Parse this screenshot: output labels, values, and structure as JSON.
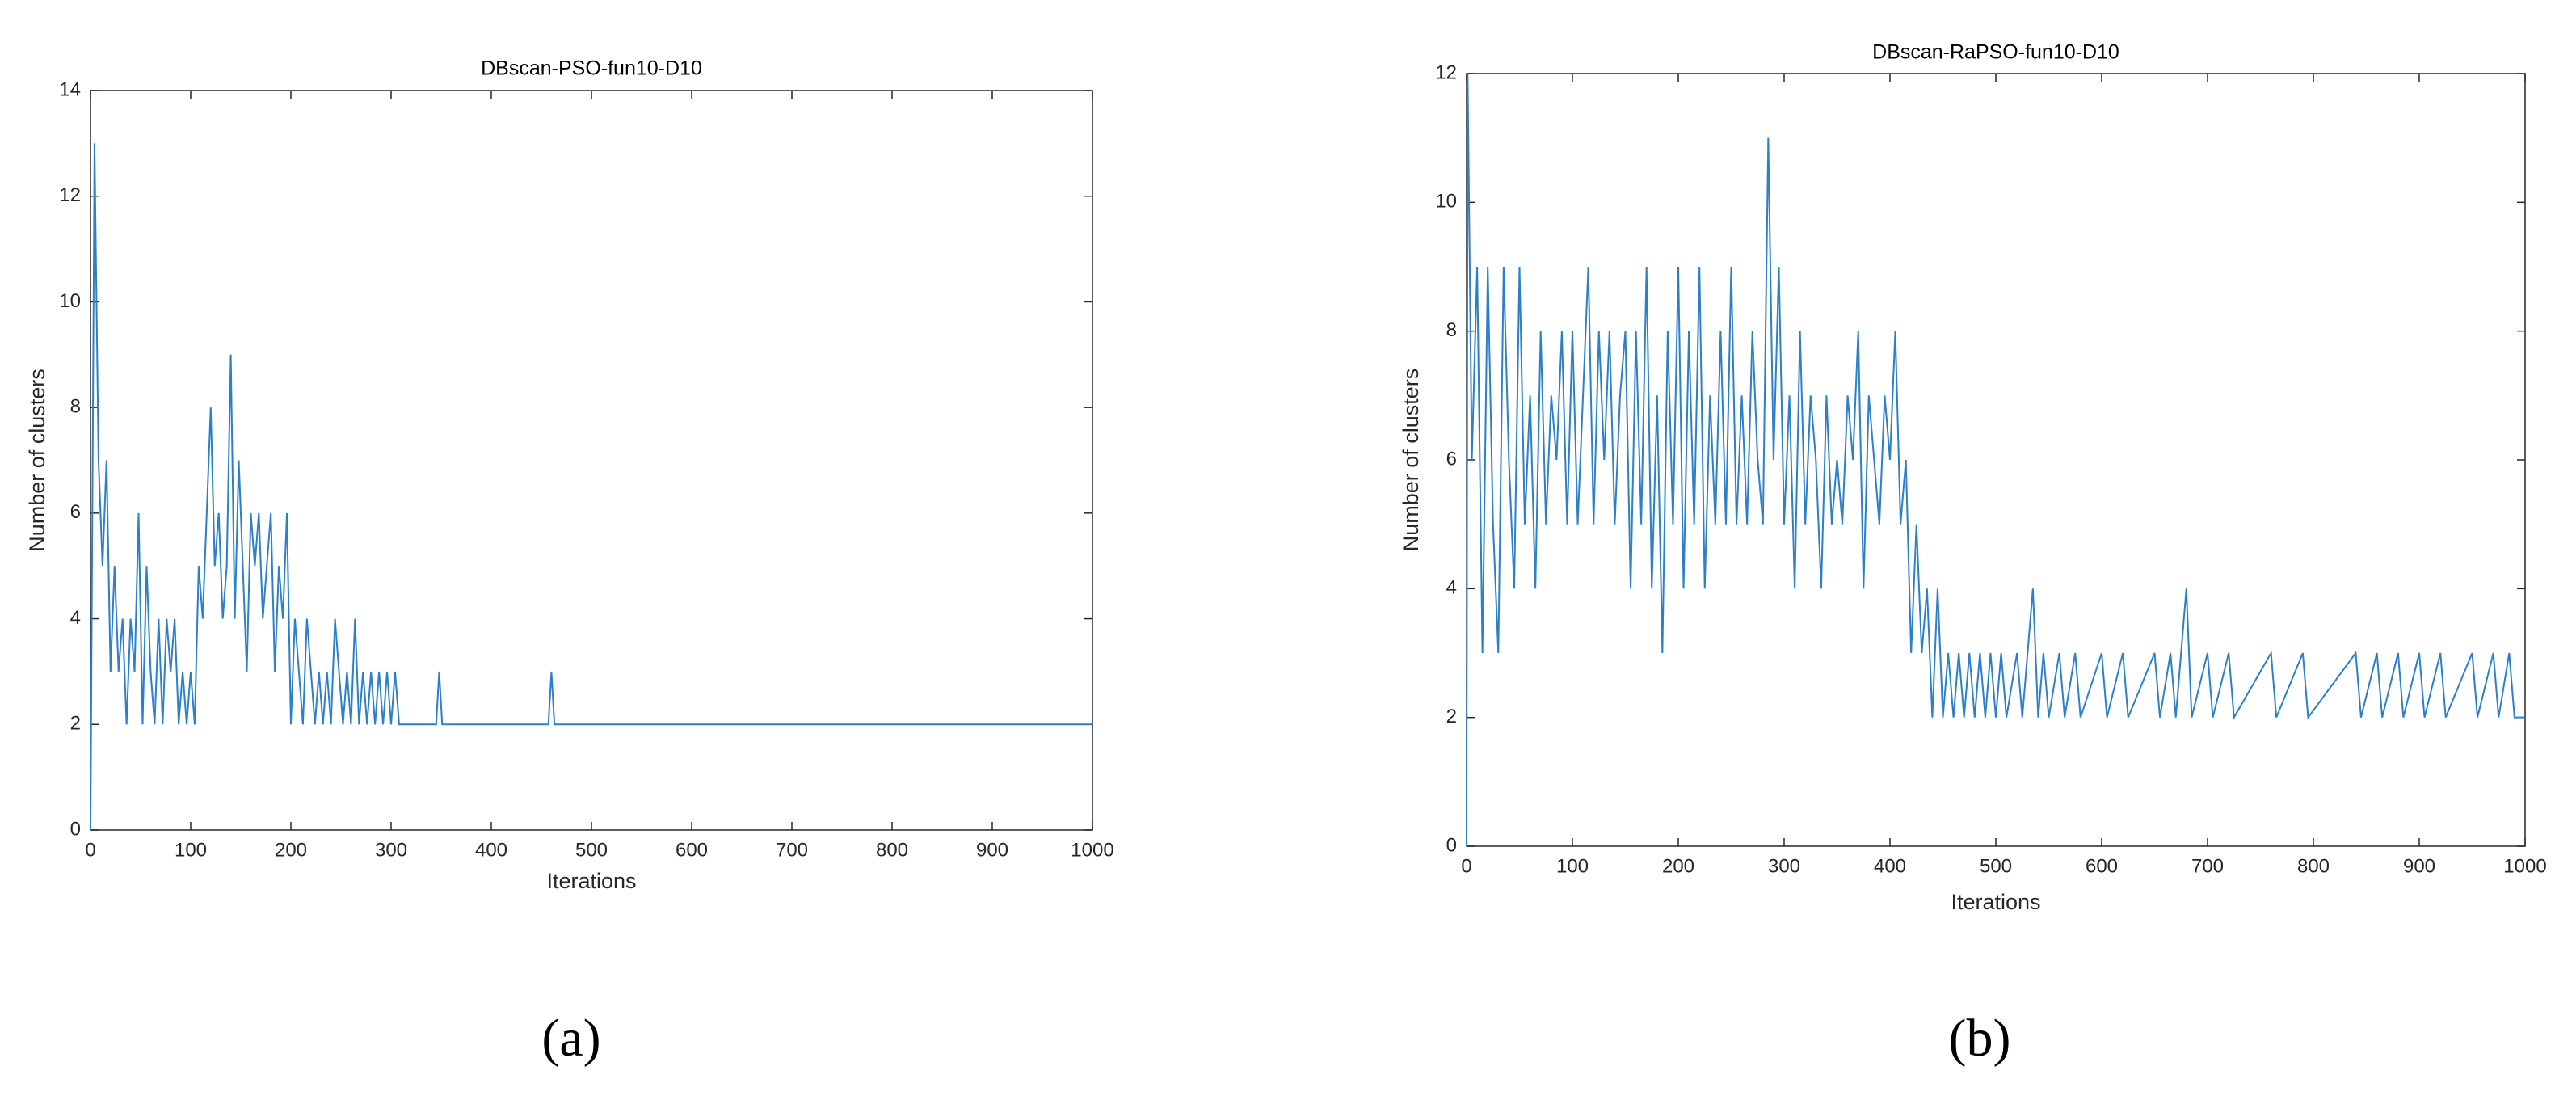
{
  "chart_data": [
    {
      "type": "line",
      "title": "DBscan-PSO-fun10-D10",
      "xlabel": "Iterations",
      "ylabel": "Number of clusters",
      "panel_label": "(a)",
      "color": "#2c7fc9",
      "grid": false,
      "x": [
        0,
        4,
        8,
        12,
        16,
        20,
        24,
        28,
        32,
        36,
        40,
        44,
        48,
        52,
        56,
        60,
        64,
        68,
        72,
        76,
        80,
        84,
        88,
        92,
        96,
        100,
        104,
        108,
        112,
        116,
        120,
        124,
        128,
        132,
        136,
        140,
        144,
        148,
        152,
        156,
        160,
        164,
        168,
        172,
        176,
        180,
        184,
        188,
        192,
        196,
        200,
        204,
        208,
        212,
        216,
        220,
        224,
        228,
        232,
        236,
        240,
        244,
        248,
        252,
        256,
        260,
        264,
        268,
        272,
        276,
        280,
        284,
        288,
        292,
        296,
        300,
        304,
        308,
        312,
        316,
        320,
        345,
        348,
        351,
        457,
        460,
        463,
        1000
      ],
      "values": [
        0,
        13,
        7,
        5,
        7,
        3,
        5,
        3,
        4,
        2,
        4,
        3,
        6,
        2,
        5,
        3,
        2,
        4,
        2,
        4,
        3,
        4,
        2,
        3,
        2,
        3,
        2,
        5,
        4,
        6,
        8,
        5,
        6,
        4,
        5,
        9,
        4,
        7,
        5,
        3,
        6,
        5,
        6,
        4,
        5,
        6,
        3,
        5,
        4,
        6,
        2,
        4,
        3,
        2,
        4,
        3,
        2,
        3,
        2,
        3,
        2,
        4,
        3,
        2,
        3,
        2,
        4,
        2,
        3,
        2,
        3,
        2,
        3,
        2,
        3,
        2,
        3,
        2,
        2,
        2,
        2,
        2,
        3,
        2,
        2,
        3,
        2,
        2
      ],
      "xlim": [
        0,
        1000
      ],
      "xticks": [
        0,
        100,
        200,
        300,
        400,
        500,
        600,
        700,
        800,
        900,
        1000
      ],
      "ylim": [
        0,
        14
      ],
      "yticks": [
        0,
        2,
        4,
        6,
        8,
        10,
        12,
        14
      ]
    },
    {
      "type": "line",
      "title": "DBscan-RaPSO-fun10-D10",
      "xlabel": "Iterations",
      "ylabel": "Number of clusters",
      "panel_label": "(b)",
      "color": "#2c7fc9",
      "grid": false,
      "x": [
        0,
        1,
        5,
        10,
        15,
        20,
        25,
        30,
        35,
        40,
        45,
        50,
        55,
        60,
        65,
        70,
        75,
        80,
        85,
        90,
        95,
        100,
        105,
        110,
        115,
        120,
        125,
        130,
        135,
        140,
        145,
        150,
        155,
        160,
        165,
        170,
        175,
        180,
        185,
        190,
        195,
        200,
        205,
        210,
        215,
        220,
        225,
        230,
        235,
        240,
        245,
        250,
        255,
        260,
        265,
        270,
        275,
        280,
        285,
        290,
        295,
        300,
        305,
        310,
        315,
        320,
        325,
        330,
        335,
        340,
        345,
        350,
        355,
        360,
        365,
        370,
        375,
        380,
        385,
        390,
        395,
        400,
        405,
        410,
        415,
        420,
        425,
        430,
        435,
        440,
        445,
        450,
        455,
        460,
        465,
        470,
        475,
        480,
        485,
        490,
        495,
        500,
        505,
        510,
        520,
        525,
        535,
        540,
        545,
        550,
        560,
        565,
        575,
        580,
        600,
        605,
        620,
        625,
        650,
        655,
        665,
        670,
        680,
        685,
        700,
        705,
        720,
        725,
        760,
        765,
        790,
        795,
        840,
        845,
        860,
        865,
        880,
        885,
        900,
        905,
        920,
        925,
        950,
        955,
        970,
        975,
        985,
        990,
        1000
      ],
      "values": [
        0,
        12,
        6,
        9,
        3,
        9,
        5,
        3,
        9,
        6,
        4,
        9,
        5,
        7,
        4,
        8,
        5,
        7,
        6,
        8,
        5,
        8,
        5,
        7,
        9,
        5,
        8,
        6,
        8,
        5,
        7,
        8,
        4,
        8,
        5,
        9,
        4,
        7,
        3,
        8,
        5,
        9,
        4,
        8,
        5,
        9,
        4,
        7,
        5,
        8,
        5,
        9,
        5,
        7,
        5,
        8,
        6,
        5,
        11,
        6,
        9,
        5,
        7,
        4,
        8,
        5,
        7,
        6,
        4,
        7,
        5,
        6,
        5,
        7,
        6,
        8,
        4,
        7,
        6,
        5,
        7,
        6,
        8,
        5,
        6,
        3,
        5,
        3,
        4,
        2,
        4,
        2,
        3,
        2,
        3,
        2,
        3,
        2,
        3,
        2,
        3,
        2,
        3,
        2,
        3,
        2,
        4,
        2,
        3,
        2,
        3,
        2,
        3,
        2,
        3,
        2,
        3,
        2,
        3,
        2,
        3,
        2,
        4,
        2,
        3,
        2,
        3,
        2,
        3,
        2,
        3,
        2,
        3,
        2,
        3,
        2,
        3,
        2,
        3,
        2,
        3,
        2,
        3,
        2,
        3,
        2,
        3,
        2,
        2
      ],
      "xlim": [
        0,
        1000
      ],
      "xticks": [
        0,
        100,
        200,
        300,
        400,
        500,
        600,
        700,
        800,
        900,
        1000
      ],
      "ylim": [
        0,
        12
      ],
      "yticks": [
        0,
        2,
        4,
        6,
        8,
        10,
        12
      ]
    }
  ]
}
